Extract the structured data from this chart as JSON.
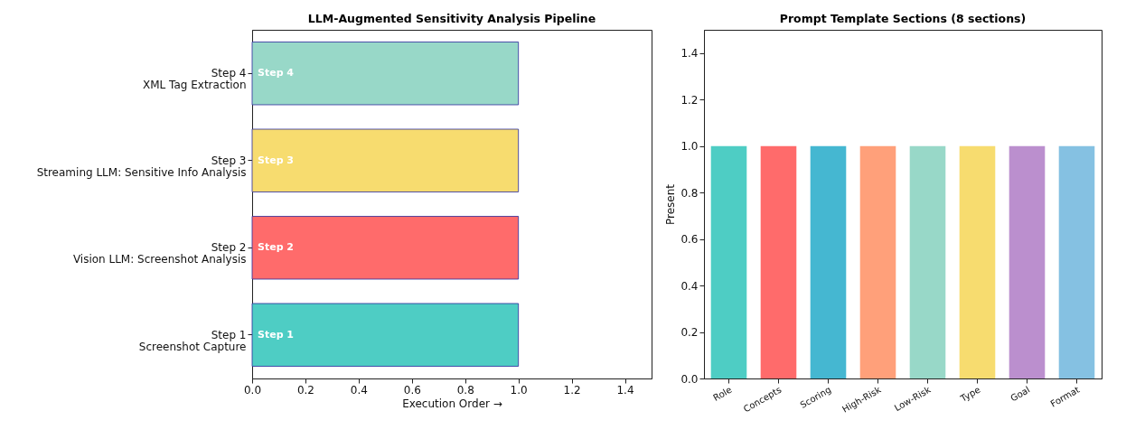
{
  "chart_data": [
    {
      "type": "bar",
      "orientation": "horizontal",
      "title": "LLM-Augmented Sensitivity Analysis Pipeline",
      "xlabel": "Execution Order →",
      "categories": [
        "Step 4\nXML Tag Extraction",
        "Step 3\nStreaming LLM: Sensitive Info Analysis",
        "Step 2\nVision LLM: Screenshot Analysis",
        "Step 1\nScreenshot Capture"
      ],
      "values": [
        1,
        1,
        1,
        1
      ],
      "colors": [
        "#98d8c8",
        "#f7dc6f",
        "#ff6b6b",
        "#4ecdc4"
      ],
      "xlim": [
        0,
        1.5
      ],
      "xticks": [
        {
          "value": 0,
          "label": "0.0"
        },
        0.2,
        0.4,
        0.6,
        0.8,
        {
          "value": 1,
          "label": "1.0"
        },
        1.2,
        1.4
      ],
      "annotations": [
        "Step 4",
        "Step 3",
        "Step 2",
        "Step 1"
      ]
    },
    {
      "type": "bar",
      "title": "Prompt Template Sections (8 sections)",
      "ylabel": "Present",
      "categories": [
        "Role",
        "Concepts",
        "Scoring",
        "High-Risk",
        "Low-Risk",
        "Type",
        "Goal",
        "Format"
      ],
      "values": [
        1,
        1,
        1,
        1,
        1,
        1,
        1,
        1
      ],
      "colors": [
        "#4ecdc4",
        "#ff6b6b",
        "#45b7d1",
        "#ffa07a",
        "#98d8c8",
        "#f7dc6f",
        "#bb8fce",
        "#85c1e2"
      ],
      "ylim": [
        0,
        1.5
      ],
      "yticks": [
        {
          "value": 0,
          "label": "0.0"
        },
        0.2,
        0.4,
        0.6,
        0.8,
        {
          "value": 1,
          "label": "1.0"
        },
        1.2,
        1.4
      ]
    }
  ]
}
